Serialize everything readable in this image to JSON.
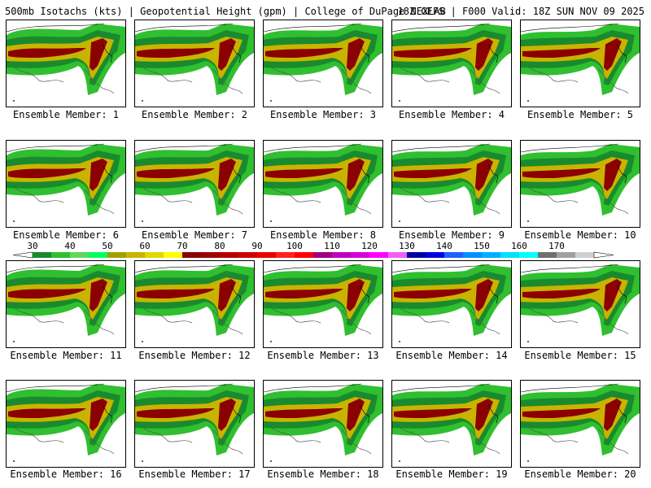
{
  "header": {
    "left": "500mb Isotachs (kts) | Geopotential Height (gpm) | College of DuPage NEXLAB",
    "right": "18Z GEFS | F000 Valid: 18Z SUN NOV 09 2025"
  },
  "chart_data": {
    "type": "heatmap",
    "title": "500mb Isotachs (kts) | Geopotential Height (gpm)",
    "source": "College of DuPage NEXLAB",
    "model": "18Z GEFS",
    "valid": "F000 Valid: 18Z SUN NOV 09 2025",
    "label_prefix": "Ensemble Member:",
    "members": [
      1,
      2,
      3,
      4,
      5,
      6,
      7,
      8,
      9,
      10,
      11,
      12,
      13,
      14,
      15,
      16,
      17,
      18,
      19,
      20
    ],
    "colorbar": {
      "ticks": [
        30,
        40,
        50,
        60,
        70,
        80,
        90,
        100,
        110,
        120,
        130,
        140,
        150,
        160,
        170
      ],
      "colors": [
        "#1a8a2e",
        "#2fbf2f",
        "#5fd85a",
        "#00ff60",
        "#a0a000",
        "#c8b400",
        "#e0d800",
        "#ffff00",
        "#8b0000",
        "#a00000",
        "#b80000",
        "#d00000",
        "#e80000",
        "#ff2020",
        "#ff0000",
        "#a00080",
        "#c000c0",
        "#d800d8",
        "#ff00ff",
        "#f060f0",
        "#0000a0",
        "#0000e0",
        "#2060ff",
        "#0090ff",
        "#00b0ff",
        "#00e0ff",
        "#00ffff",
        "#707070",
        "#a0a0a0",
        "#d0d0d0"
      ]
    }
  }
}
